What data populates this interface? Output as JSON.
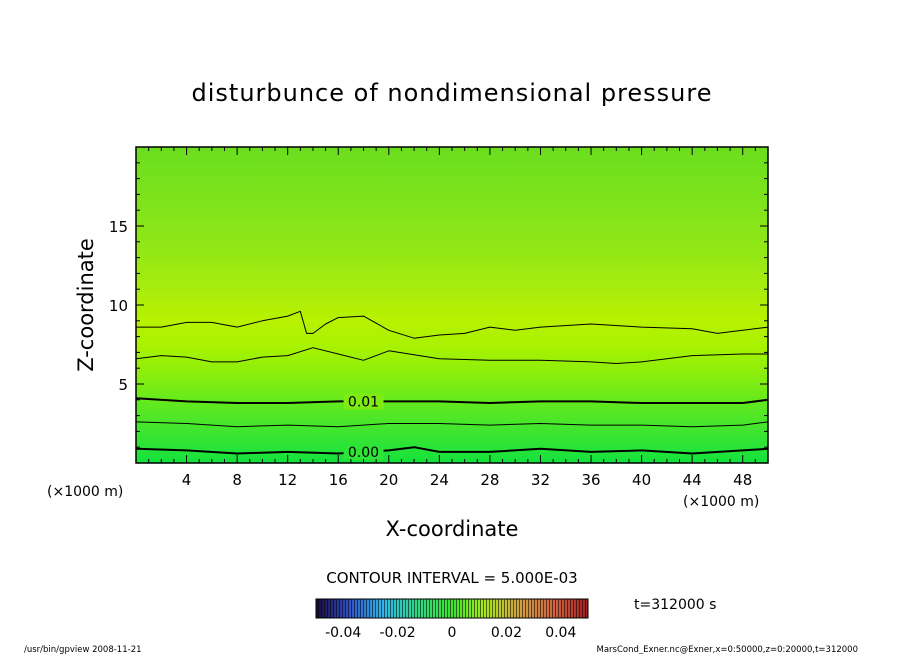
{
  "chart_data": {
    "type": "contour",
    "title": "disturbunce of nondimensional pressure",
    "xlabel": "X-coordinate",
    "ylabel": "Z-coordinate",
    "x_unit_left": "(×1000 m)",
    "x_unit_right": "(×1000 m)",
    "xlim": [
      0,
      50
    ],
    "ylim": [
      0,
      20
    ],
    "x_ticks": [
      "4",
      "8",
      "12",
      "16",
      "20",
      "24",
      "28",
      "32",
      "36",
      "40",
      "44",
      "48"
    ],
    "y_ticks": [
      "5",
      "10",
      "15"
    ],
    "contour_interval_text": "CONTOUR INTERVAL = 5.000E-03",
    "time_text": "t=312000 s",
    "colorbar_ticks": [
      "-0.04",
      "-0.02",
      "0",
      "0.02",
      "0.04"
    ],
    "colorbar_range": [
      -0.05,
      0.05
    ],
    "contour_labels": [
      {
        "text": "0.01",
        "x": 18,
        "z": 3.9
      },
      {
        "text": "0.00",
        "x": 18,
        "z": 0.7
      }
    ],
    "contours": [
      {
        "level": 0.0,
        "bold": true,
        "x": [
          0,
          4,
          8,
          12,
          16,
          20,
          22,
          24,
          28,
          32,
          36,
          40,
          44,
          48,
          50
        ],
        "z": [
          0.9,
          0.8,
          0.6,
          0.7,
          0.6,
          0.8,
          1.0,
          0.7,
          0.7,
          0.9,
          0.7,
          0.8,
          0.6,
          0.8,
          0.9
        ]
      },
      {
        "level": 0.005,
        "bold": false,
        "x": [
          0,
          4,
          8,
          12,
          16,
          20,
          24,
          28,
          32,
          36,
          40,
          44,
          48,
          50
        ],
        "z": [
          2.6,
          2.5,
          2.3,
          2.4,
          2.3,
          2.5,
          2.5,
          2.4,
          2.5,
          2.4,
          2.4,
          2.3,
          2.4,
          2.6
        ]
      },
      {
        "level": 0.01,
        "bold": true,
        "x": [
          0,
          4,
          8,
          12,
          16,
          20,
          24,
          28,
          32,
          36,
          40,
          44,
          48,
          50
        ],
        "z": [
          4.1,
          3.9,
          3.8,
          3.8,
          3.9,
          3.9,
          3.9,
          3.8,
          3.9,
          3.9,
          3.8,
          3.8,
          3.8,
          4.0
        ]
      },
      {
        "level": 0.015,
        "bold": false,
        "x": [
          0,
          2,
          4,
          6,
          8,
          10,
          12,
          14,
          16,
          18,
          20,
          24,
          28,
          32,
          36,
          38,
          40,
          44,
          48,
          50
        ],
        "z": [
          6.6,
          6.8,
          6.7,
          6.4,
          6.4,
          6.7,
          6.8,
          7.3,
          6.9,
          6.5,
          7.1,
          6.6,
          6.5,
          6.5,
          6.4,
          6.3,
          6.4,
          6.8,
          6.9,
          6.9
        ]
      },
      {
        "level": 0.02,
        "bold": false,
        "x": [
          0,
          2,
          4,
          6,
          8,
          10,
          12,
          13,
          13.5,
          14,
          15,
          16,
          18,
          20,
          22,
          24,
          26,
          28,
          30,
          32,
          36,
          40,
          44,
          46,
          48,
          50
        ],
        "z": [
          8.6,
          8.6,
          8.9,
          8.9,
          8.6,
          9.0,
          9.3,
          9.6,
          8.2,
          8.2,
          8.8,
          9.2,
          9.3,
          8.4,
          7.9,
          8.1,
          8.2,
          8.6,
          8.4,
          8.6,
          8.8,
          8.6,
          8.5,
          8.2,
          8.4,
          8.6
        ]
      }
    ]
  },
  "footer": {
    "left": "/usr/bin/gpview  2008-11-21",
    "right": "MarsCond_Exner.nc@Exner,x=0:50000,z=0:20000,t=312000"
  },
  "colors": {
    "plot_top": "#66e01c",
    "plot_mid": "#b2f000",
    "plot_bottom": "#1ae040"
  }
}
